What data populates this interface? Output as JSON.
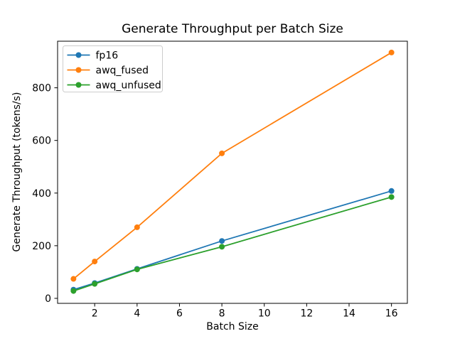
{
  "chart_data": {
    "type": "line",
    "title": "Generate Throughput per Batch Size",
    "xlabel": "Batch Size",
    "ylabel": "Generate Throughput (tokens/s)",
    "x": [
      1,
      2,
      4,
      8,
      16
    ],
    "series": [
      {
        "name": "fp16",
        "color": "#1f77b4",
        "values": [
          33,
          58,
          112,
          218,
          408
        ]
      },
      {
        "name": "awq_fused",
        "color": "#ff7f0e",
        "values": [
          74,
          140,
          270,
          551,
          934
        ]
      },
      {
        "name": "awq_unfused",
        "color": "#2ca02c",
        "values": [
          28,
          55,
          110,
          196,
          385
        ]
      }
    ],
    "xticks": [
      2,
      4,
      6,
      8,
      10,
      12,
      14,
      16
    ],
    "yticks": [
      0,
      200,
      400,
      600,
      800
    ],
    "xlim": [
      0.25,
      16.75
    ],
    "ylim": [
      -19,
      977
    ],
    "grid": false,
    "marker": "o",
    "legend": {
      "position": "upper left",
      "entries": [
        "fp16",
        "awq_fused",
        "awq_unfused"
      ]
    },
    "colors": {
      "spine": "#000000",
      "background": "#ffffff",
      "legend_border": "#cccccc"
    }
  }
}
